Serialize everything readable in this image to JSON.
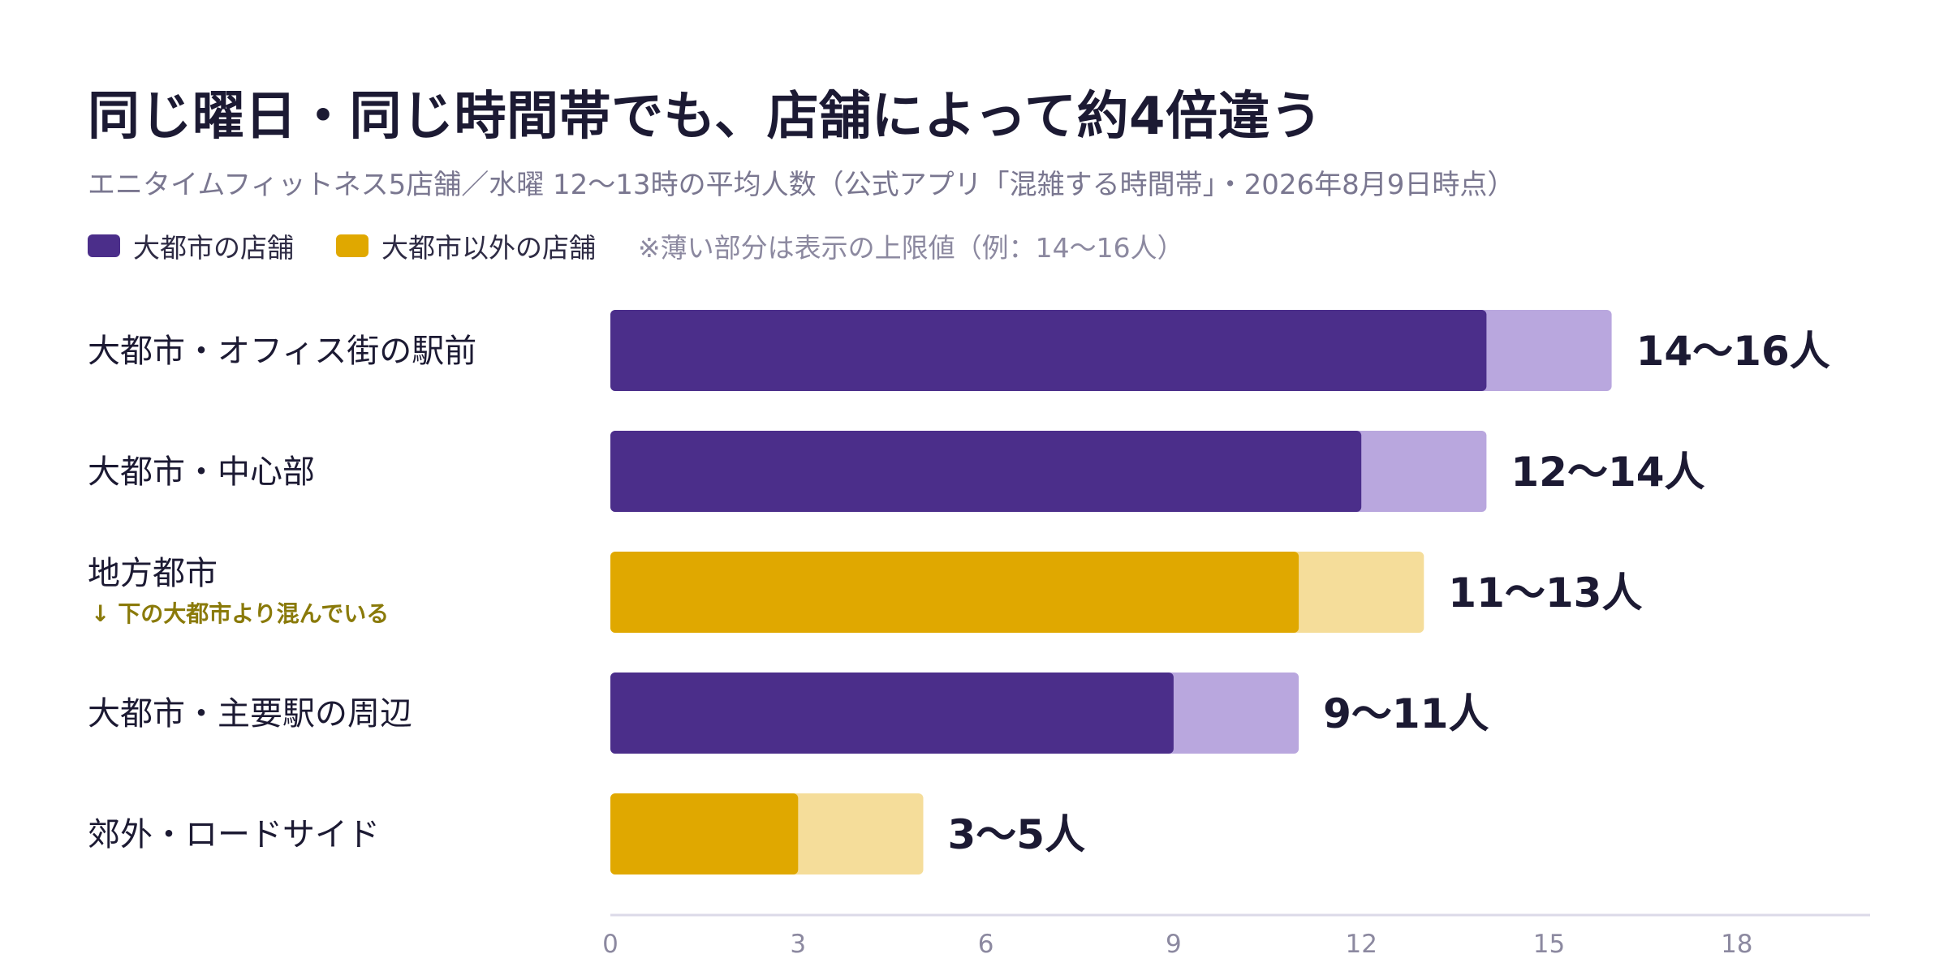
{
  "chart_data": {
    "type": "bar",
    "orientation": "horizontal",
    "stacked": true,
    "title": "同じ曜日・同じ時間帯でも、店舗によって約4倍違う",
    "subtitle": "エニタイムフィットネス5店舗／水曜 12〜13時の平均人数（公式アプリ「混雑する時間帯」・2026年8月9日時点）",
    "legend": {
      "items": [
        {
          "name": "大都市の店舗",
          "color": "#4b2e8a"
        },
        {
          "name": "大都市以外の店舗",
          "color": "#e0a800"
        }
      ],
      "note": "※薄い部分は表示の上限値（例：14〜16人）",
      "placement": "top-left"
    },
    "categories": [
      "大都市・オフィス街の駅前",
      "大都市・中心部",
      "地方都市",
      "大都市・主要駅の周辺",
      "郊外・ロードサイド"
    ],
    "category_notes": [
      "",
      "",
      "↓ 下の大都市より混んでいる",
      "",
      ""
    ],
    "groups": [
      "大都市の店舗",
      "大都市の店舗",
      "大都市以外の店舗",
      "大都市の店舗",
      "大都市以外の店舗"
    ],
    "lower": [
      14,
      12,
      11,
      9,
      3
    ],
    "upper": [
      16,
      14,
      13,
      11,
      5
    ],
    "value_labels": [
      "14〜16人",
      "12〜14人",
      "11〜13人",
      "9〜11人",
      "3〜5人"
    ],
    "colors": {
      "city": "#4b2e8a",
      "city_light": "#b9a7de",
      "other": "#e0a800",
      "other_light": "#f5dd9a",
      "axis": "#dcdae8"
    },
    "xlim": [
      0,
      20
    ],
    "xticks": [
      0,
      3,
      6,
      9,
      12,
      15,
      18
    ],
    "grid": false
  }
}
